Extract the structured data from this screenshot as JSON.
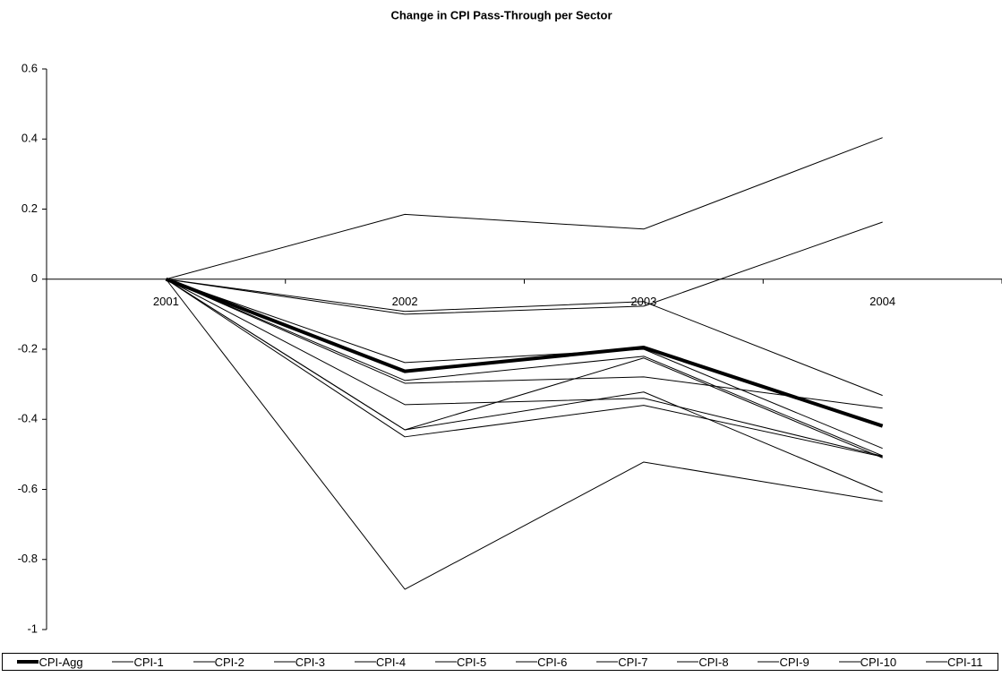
{
  "chart_data": {
    "type": "line",
    "title": "Change in CPI Pass-Through per Sector",
    "categories": [
      "2001",
      "2002",
      "2003",
      "2004"
    ],
    "series": [
      {
        "name": "CPI-Agg",
        "color": "#000000",
        "width": 4,
        "values": [
          0,
          -0.263,
          -0.195,
          -0.419
        ]
      },
      {
        "name": "CPI-1",
        "color": "#000000",
        "width": 1,
        "values": [
          0,
          0.185,
          0.143,
          0.404
        ]
      },
      {
        "name": "CPI-2",
        "color": "#000000",
        "width": 1,
        "values": [
          0,
          -0.1,
          -0.077,
          0.163
        ]
      },
      {
        "name": "CPI-3",
        "color": "#000000",
        "width": 1,
        "values": [
          0,
          -0.092,
          -0.064,
          -0.332
        ]
      },
      {
        "name": "CPI-4",
        "color": "#000000",
        "width": 1,
        "values": [
          0,
          -0.238,
          -0.2,
          -0.483
        ]
      },
      {
        "name": "CPI-5",
        "color": "#000000",
        "width": 1,
        "values": [
          0,
          -0.289,
          -0.22,
          -0.504
        ]
      },
      {
        "name": "CPI-6",
        "color": "#000000",
        "width": 1,
        "values": [
          0,
          -0.297,
          -0.279,
          -0.368
        ]
      },
      {
        "name": "CPI-7",
        "color": "#000000",
        "width": 1,
        "values": [
          0,
          -0.358,
          -0.34,
          -0.505
        ]
      },
      {
        "name": "CPI-8",
        "color": "#000000",
        "width": 1,
        "values": [
          0,
          -0.43,
          -0.225,
          -0.51
        ]
      },
      {
        "name": "CPI-9",
        "color": "#000000",
        "width": 1,
        "values": [
          0,
          -0.43,
          -0.322,
          -0.609
        ]
      },
      {
        "name": "CPI-10",
        "color": "#000000",
        "width": 1,
        "values": [
          0,
          -0.45,
          -0.36,
          -0.507
        ]
      },
      {
        "name": "CPI-11",
        "color": "#000000",
        "width": 1,
        "values": [
          0,
          -0.885,
          -0.522,
          -0.634
        ]
      }
    ],
    "ylim": [
      -1,
      0.6
    ],
    "yticks": [
      -1,
      -0.8,
      -0.6,
      -0.4,
      -0.2,
      0,
      0.2,
      0.4,
      0.6
    ],
    "grid": false
  }
}
